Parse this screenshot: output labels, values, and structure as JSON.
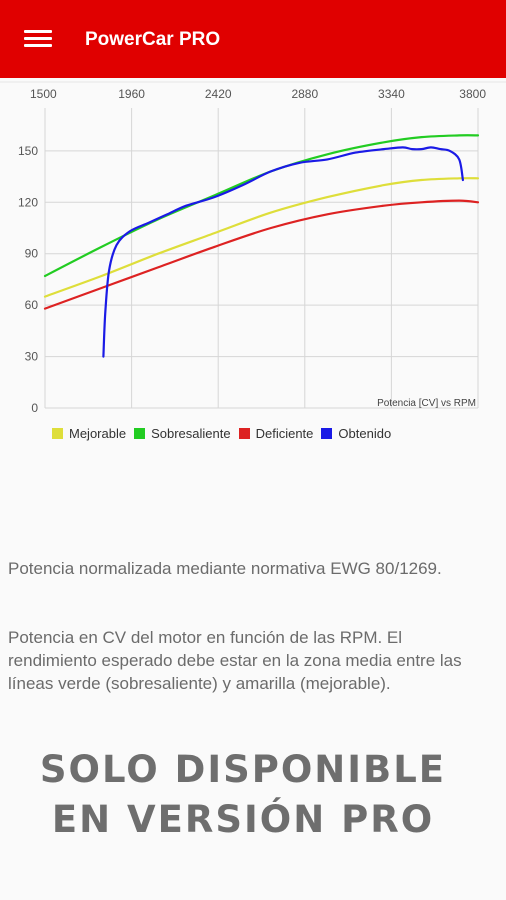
{
  "app_bar": {
    "title": "PowerCar PRO",
    "background": "#e00000",
    "menu_icon": "hamburger-menu-icon"
  },
  "chart_data": {
    "type": "line",
    "title": "",
    "watermark": "Potencia [CV] vs RPM",
    "x_ticks": [
      1500,
      1960,
      2420,
      2880,
      3340,
      3800
    ],
    "x_tick_labels": [
      "1500",
      "1960",
      "2420",
      "2880",
      "3340",
      "3800"
    ],
    "y_ticks": [
      0,
      30,
      60,
      90,
      120,
      150
    ],
    "y_tick_labels": [
      "0",
      "30",
      "60",
      "90",
      "120",
      "150"
    ],
    "xlim": [
      1500,
      3800
    ],
    "ylim": [
      0,
      175
    ],
    "x_axis_position": "top",
    "grid": true,
    "legend_position": "bottom-left",
    "series": [
      {
        "name": "Mejorable",
        "color": "#dede3a",
        "x": [
          1500,
          1800,
          2100,
          2400,
          2700,
          3000,
          3300,
          3500,
          3700,
          3800
        ],
        "y": [
          65,
          77,
          90,
          102,
          114,
          123,
          130,
          133,
          134,
          134
        ]
      },
      {
        "name": "Sobresaliente",
        "color": "#22cc22",
        "x": [
          1500,
          1800,
          2100,
          2400,
          2700,
          3000,
          3300,
          3500,
          3700,
          3800
        ],
        "y": [
          77,
          94,
          110,
          124,
          138,
          148,
          155,
          158,
          159,
          159
        ]
      },
      {
        "name": "Deficiente",
        "color": "#dd2222",
        "x": [
          1500,
          1800,
          2100,
          2400,
          2700,
          3000,
          3300,
          3500,
          3700,
          3800
        ],
        "y": [
          58,
          70,
          82,
          94,
          105,
          113,
          118,
          120,
          121,
          120
        ]
      },
      {
        "name": "Obtenido",
        "color": "#1a1ae6",
        "x": [
          1810,
          1820,
          1840,
          1880,
          1950,
          2050,
          2150,
          2250,
          2400,
          2550,
          2700,
          2850,
          3000,
          3150,
          3300,
          3400,
          3450,
          3500,
          3550,
          3600,
          3650,
          3700,
          3720
        ],
        "y": [
          30,
          55,
          80,
          95,
          103,
          108,
          113,
          118,
          123,
          130,
          138,
          143,
          145,
          149,
          151,
          152,
          151,
          151,
          152,
          151,
          150,
          145,
          133
        ]
      }
    ]
  },
  "description": {
    "p1": "Potencia normalizada mediante normativa EWG 80/1269.",
    "p2": "Potencia en CV del motor en función de las RPM. El rendimiento esperado debe estar en la zona media entre las líneas verde (sobresaliente) y amarilla (mejorable)."
  },
  "pro_banner": {
    "line1": "SOLO DISPONIBLE",
    "line2": "EN VERSIÓN PRO"
  }
}
